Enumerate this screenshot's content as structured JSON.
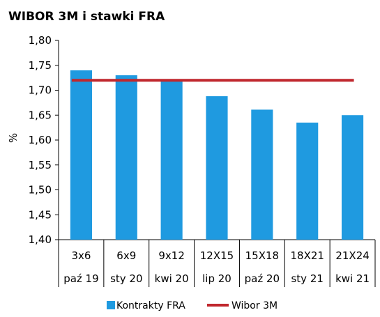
{
  "chart_data": {
    "type": "bar",
    "title": "WIBOR 3M i stawki FRA",
    "ylabel": "%",
    "ylim": [
      1.4,
      1.8
    ],
    "ytick_step": 0.05,
    "ytick_labels": [
      "1,40",
      "1,45",
      "1,50",
      "1,55",
      "1,60",
      "1,65",
      "1,70",
      "1,75",
      "1,80"
    ],
    "categories": [
      {
        "top": "3x6",
        "bottom": "paź 19"
      },
      {
        "top": "6x9",
        "bottom": "sty 20"
      },
      {
        "top": "9x12",
        "bottom": "kwi 20"
      },
      {
        "top": "12X15",
        "bottom": "lip 20"
      },
      {
        "top": "15X18",
        "bottom": "paź 20"
      },
      {
        "top": "18X21",
        "bottom": "sty 21"
      },
      {
        "top": "21X24",
        "bottom": "kwi 21"
      }
    ],
    "series": [
      {
        "name": "Kontrakty FRA",
        "type": "bar",
        "color": "#1f9ae0",
        "values": [
          1.74,
          1.73,
          1.72,
          1.688,
          1.661,
          1.635,
          1.65
        ]
      },
      {
        "name": "Wibor 3M",
        "type": "line",
        "color": "#c0272d",
        "values": [
          1.72,
          1.72,
          1.72,
          1.72,
          1.72,
          1.72,
          1.72
        ]
      }
    ],
    "grid": false,
    "legend_position": "bottom"
  }
}
